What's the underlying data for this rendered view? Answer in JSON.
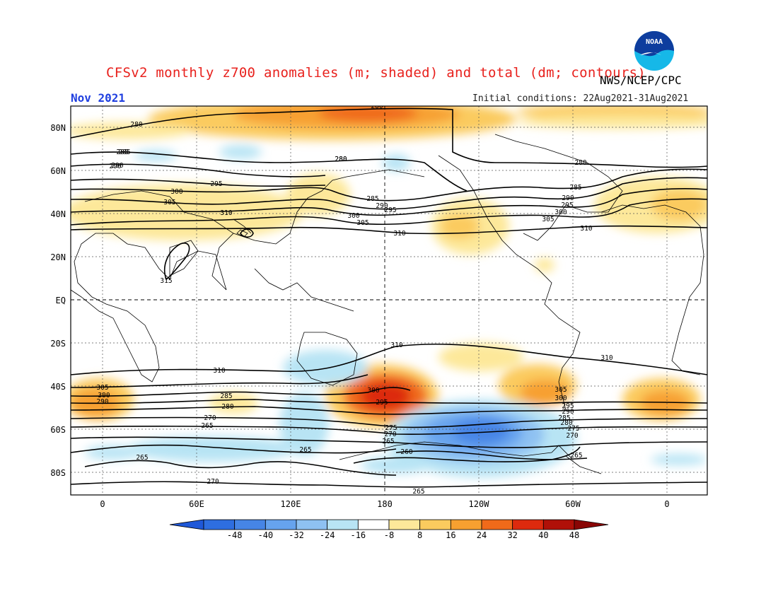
{
  "header": {
    "title": "CFSv2 monthly z700 anomalies (m; shaded) and total (dm; contours)",
    "agency": "NWS/NCEP/CPC",
    "month": "Nov 2021",
    "initial_conditions": "Initial conditions: 22Aug2021-31Aug2021"
  },
  "logo": {
    "icon": "noaa-logo-icon",
    "text": "NOAA"
  },
  "map": {
    "lat_labels": [
      "80N",
      "60N",
      "40N",
      "20N",
      "EQ",
      "20S",
      "40S",
      "60S",
      "80S"
    ],
    "lon_labels": [
      "0",
      "60E",
      "120E",
      "180",
      "120W",
      "60W",
      "0"
    ],
    "contour_labels": [
      "280",
      "285",
      "290",
      "295",
      "300",
      "305",
      "310",
      "315",
      "280",
      "285",
      "280",
      "290",
      "285",
      "290",
      "295",
      "300",
      "305",
      "310",
      "280",
      "280",
      "285",
      "290",
      "295",
      "300",
      "305",
      "310",
      "310",
      "310",
      "310",
      "305",
      "300",
      "290",
      "285",
      "280",
      "270",
      "265",
      "265",
      "265",
      "270",
      "300",
      "295",
      "275",
      "270",
      "265",
      "260",
      "265",
      "305",
      "300",
      "295",
      "290",
      "285",
      "280",
      "275",
      "270",
      "265",
      "265",
      "280",
      "260"
    ]
  },
  "colorbar": {
    "ticks": [
      "-48",
      "-40",
      "-32",
      "-24",
      "-16",
      "-8",
      "8",
      "16",
      "24",
      "32",
      "40",
      "48"
    ],
    "colors": [
      "#1f58d8",
      "#2e6ee0",
      "#4685e6",
      "#66a3ee",
      "#8ec1f2",
      "#b8e4f4",
      "#ffffff",
      "#fde89a",
      "#fbcb5e",
      "#f7a030",
      "#f06a1a",
      "#dd2a0e",
      "#b01008",
      "#8a0605"
    ]
  }
}
